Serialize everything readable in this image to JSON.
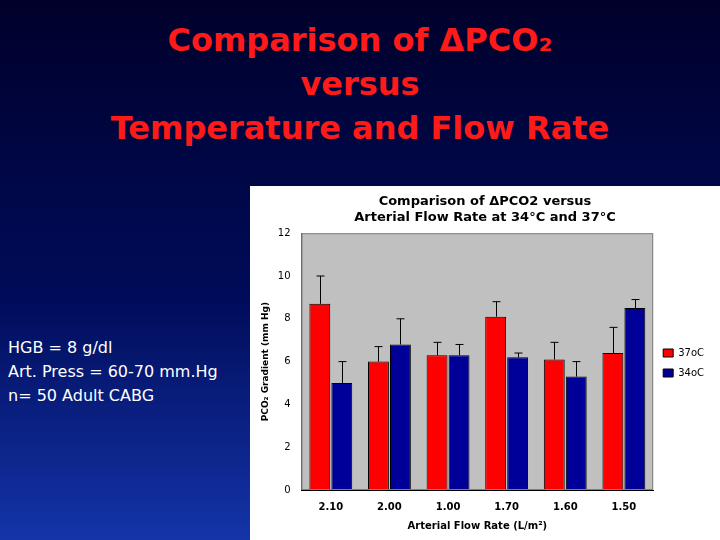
{
  "slide": {
    "title": [
      "Comparison of ΔPCO₂",
      "versus",
      "Temperature and Flow Rate"
    ],
    "notes": [
      "HGB = 8 g/dl",
      "Art. Press = 60-70 mm.Hg",
      "n= 50 Adult CABG"
    ]
  },
  "chart_data": {
    "type": "bar",
    "title": [
      "Comparison of ΔPCO2 versus",
      "Arterial Flow Rate at 34°C and 37°C"
    ],
    "x_label": "Arterial Flow Rate (L/m²)",
    "y_label": "PCO₂ Gradient (mm Hg)",
    "categories": [
      "2.10",
      "2.00",
      "1.00",
      "1.70",
      "1.60",
      "1.50"
    ],
    "series": [
      {
        "name": "37oC",
        "color": "#ff0000",
        "values": [
          8.7,
          6.0,
          6.3,
          8.1,
          6.1,
          6.4
        ],
        "errors": [
          1.3,
          0.7,
          0.6,
          0.7,
          0.8,
          1.2
        ]
      },
      {
        "name": "34oC",
        "color": "#000099",
        "values": [
          5.0,
          6.8,
          6.3,
          6.2,
          5.3,
          8.5
        ],
        "errors": [
          1.0,
          1.2,
          0.5,
          0.2,
          0.7,
          0.4
        ]
      }
    ],
    "ylim": [
      0,
      12
    ],
    "yticks": [
      0,
      2,
      4,
      6,
      8,
      10,
      12
    ],
    "grid": false,
    "legend": "right"
  }
}
